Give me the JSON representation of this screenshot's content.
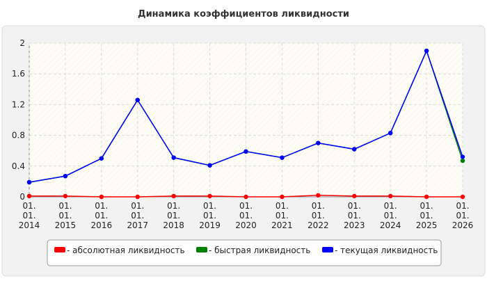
{
  "chart_data": {
    "type": "line",
    "title": "Динамика коэффициентов ликвидности",
    "categories": [
      "01. 01. 2014",
      "01. 01. 2015",
      "01. 01. 2016",
      "01. 01. 2017",
      "01. 01. 2018",
      "01. 01. 2019",
      "01. 01. 2020",
      "01. 01. 2021",
      "01. 01. 2022",
      "01. 01. 2023",
      "01. 01. 2024",
      "01. 01. 2025",
      "01. 01. 2026"
    ],
    "series": [
      {
        "name": "- абсолютная ликвидность",
        "color": "#ff0000",
        "values": [
          0.01,
          0.01,
          0,
          0,
          0.01,
          0.01,
          0,
          0,
          0.02,
          0.01,
          0.01,
          0,
          0
        ]
      },
      {
        "name": "- быстрая ликвидность",
        "color": "#008000",
        "values": [
          0.19,
          0.27,
          0.5,
          1.26,
          0.51,
          0.41,
          0.59,
          0.51,
          0.7,
          0.62,
          0.83,
          1.9,
          0.47
        ]
      },
      {
        "name": "- текущая ликвидность",
        "color": "#0000ff",
        "values": [
          0.19,
          0.27,
          0.5,
          1.26,
          0.51,
          0.41,
          0.59,
          0.51,
          0.7,
          0.62,
          0.83,
          1.9,
          0.52
        ]
      }
    ],
    "ylim": [
      0,
      2
    ],
    "yticks": [
      0,
      0.4,
      0.8,
      1.2,
      1.6,
      2
    ],
    "grid": true
  }
}
